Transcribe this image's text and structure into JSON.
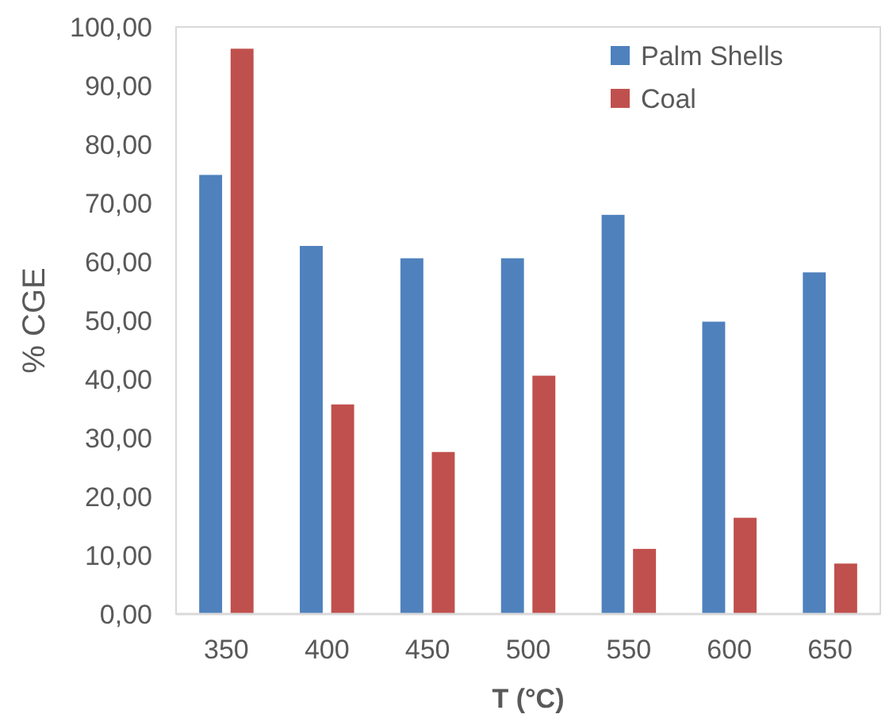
{
  "chart_data": {
    "type": "bar",
    "xlabel": "T (°C)",
    "ylabel": "% CGE",
    "categories": [
      "350",
      "400",
      "450",
      "500",
      "550",
      "600",
      "650"
    ],
    "series": [
      {
        "name": "Palm Shells",
        "color": "#4f81bd",
        "values": [
          74.8,
          62.7,
          60.6,
          60.6,
          68.0,
          49.8,
          58.2
        ]
      },
      {
        "name": "Coal",
        "color": "#c0504d",
        "values": [
          96.3,
          35.7,
          27.6,
          40.6,
          11.1,
          16.4,
          8.6
        ]
      }
    ],
    "ylim": [
      0,
      100
    ],
    "yticks": [
      {
        "value": 0,
        "label": "0,00"
      },
      {
        "value": 10,
        "label": "10,00"
      },
      {
        "value": 20,
        "label": "20,00"
      },
      {
        "value": 30,
        "label": "30,00"
      },
      {
        "value": 40,
        "label": "40,00"
      },
      {
        "value": 50,
        "label": "50,00"
      },
      {
        "value": 60,
        "label": "60,00"
      },
      {
        "value": 70,
        "label": "70,00"
      },
      {
        "value": 80,
        "label": "80,00"
      },
      {
        "value": 90,
        "label": "90,00"
      },
      {
        "value": 100,
        "label": "100,00"
      }
    ],
    "grid": false,
    "legend": "top right"
  }
}
